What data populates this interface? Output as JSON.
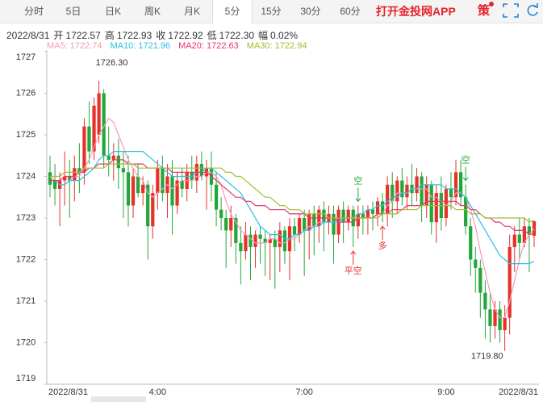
{
  "header": {
    "tabs": [
      {
        "label": "分时"
      },
      {
        "label": "5日"
      },
      {
        "label": "日K"
      },
      {
        "label": "周K"
      },
      {
        "label": "月K"
      },
      {
        "label": "5分",
        "selected": true
      },
      {
        "label": "15分"
      },
      {
        "label": "30分"
      },
      {
        "label": "60分"
      }
    ],
    "app_link": "打开金投网APP",
    "strategy": "策",
    "date": "2022/8/31",
    "fields": [
      {
        "name": "开",
        "value": "1722.57"
      },
      {
        "name": "高",
        "value": "1722.93"
      },
      {
        "name": "收",
        "value": "1722.92"
      },
      {
        "name": "低",
        "value": "1722.30"
      },
      {
        "name": "幅",
        "value": "0.02%"
      }
    ]
  },
  "chart_data": {
    "type": "candlestick",
    "categories": [
      "2022/8/31",
      null,
      null,
      null,
      null,
      null,
      null,
      null,
      null,
      null,
      null,
      null,
      null,
      null,
      null,
      null,
      null,
      null,
      null,
      null,
      null,
      null,
      "4:00",
      null,
      null,
      null,
      null,
      null,
      null,
      null,
      null,
      null,
      null,
      null,
      null,
      null,
      null,
      null,
      null,
      null,
      null,
      null,
      null,
      null,
      null,
      null,
      null,
      null,
      null,
      null,
      null,
      null,
      "7:00",
      null,
      null,
      null,
      null,
      null,
      null,
      null,
      null,
      null,
      null,
      null,
      null,
      null,
      null,
      null,
      null,
      null,
      null,
      null,
      null,
      null,
      null,
      null,
      null,
      null,
      null,
      null,
      null,
      "9:00",
      null,
      null,
      null,
      null,
      null,
      null,
      null,
      null,
      null,
      null,
      null,
      null,
      null,
      null,
      null,
      null,
      null,
      "2022/8/31"
    ],
    "open": [
      1724.1,
      1723.9,
      1723.7,
      1723.9,
      1724.0,
      1723.9,
      1724.2,
      1724.1,
      1725.2,
      1724.6,
      1725.0,
      1726.0,
      1724.5,
      1724.4,
      1724.5,
      1724.2,
      1724.1,
      1723.3,
      1724.0,
      1723.6,
      1723.8,
      1722.8,
      1723.6,
      1724.2,
      1723.6,
      1724.0,
      1723.3,
      1723.9,
      1723.7,
      1724.1,
      1723.9,
      1724.3,
      1724.0,
      1724.2,
      1723.8,
      1723.2,
      1723.0,
      1722.7,
      1723.0,
      1722.4,
      1722.2,
      1722.6,
      1722.3,
      1722.6,
      1722.5,
      1722.4,
      1722.5,
      1722.3,
      1722.7,
      1722.2,
      1722.8,
      1722.6,
      1723.0,
      1722.7,
      1723.1,
      1722.8,
      1723.2,
      1722.9,
      1723.1,
      1722.6,
      1723.2,
      1722.9,
      1723.2,
      1722.8,
      1723.1,
      1723.0,
      1723.2,
      1723.1,
      1723.4,
      1723.1,
      1723.8,
      1723.4,
      1723.9,
      1723.5,
      1723.8,
      1723.6,
      1724.0,
      1723.3,
      1723.8,
      1722.9,
      1723.6,
      1723.0,
      1723.7,
      1723.5,
      1724.1,
      1723.5,
      1722.8,
      1722.0,
      1721.8,
      1721.2,
      1720.8,
      1720.4,
      1720.8,
      1720.3,
      1720.6,
      1722.3,
      1722.6,
      1722.4,
      1722.8,
      1722.57
    ],
    "high": [
      1724.5,
      1724.3,
      1724.1,
      1724.6,
      1724.4,
      1724.5,
      1724.8,
      1725.4,
      1725.8,
      1725.9,
      1726.3,
      1726.1,
      1725.2,
      1724.8,
      1724.9,
      1724.6,
      1724.5,
      1724.2,
      1724.3,
      1724.0,
      1723.9,
      1723.8,
      1724.4,
      1724.5,
      1724.3,
      1724.4,
      1724.1,
      1724.2,
      1724.3,
      1724.5,
      1724.5,
      1724.6,
      1724.4,
      1724.6,
      1724.1,
      1723.5,
      1723.2,
      1723.3,
      1723.1,
      1722.8,
      1722.9,
      1722.8,
      1722.7,
      1722.8,
      1722.7,
      1722.6,
      1722.7,
      1722.9,
      1722.8,
      1723.0,
      1723.0,
      1723.1,
      1723.2,
      1723.2,
      1723.3,
      1723.3,
      1723.4,
      1723.3,
      1723.3,
      1723.3,
      1723.4,
      1723.3,
      1723.3,
      1723.3,
      1723.3,
      1723.3,
      1723.4,
      1723.5,
      1723.6,
      1724.0,
      1724.1,
      1724.0,
      1724.2,
      1724.0,
      1724.3,
      1724.2,
      1724.1,
      1724.0,
      1723.9,
      1723.8,
      1724.0,
      1723.8,
      1724.1,
      1724.4,
      1724.4,
      1723.8,
      1723.0,
      1722.3,
      1722.0,
      1721.5,
      1721.2,
      1721.0,
      1721.0,
      1720.9,
      1722.6,
      1722.8,
      1723.0,
      1723.0,
      1723.0,
      1722.93
    ],
    "low": [
      1723.5,
      1723.3,
      1722.8,
      1723.3,
      1723.0,
      1723.4,
      1723.6,
      1723.8,
      1724.3,
      1724.4,
      1724.8,
      1724.2,
      1724.0,
      1723.9,
      1723.7,
      1723.0,
      1722.8,
      1723.0,
      1723.5,
      1723.3,
      1722.0,
      1722.5,
      1723.2,
      1723.4,
      1723.0,
      1722.6,
      1723.1,
      1723.5,
      1723.4,
      1723.7,
      1723.6,
      1723.9,
      1723.2,
      1723.4,
      1722.8,
      1722.7,
      1721.8,
      1722.3,
      1721.9,
      1721.4,
      1722.0,
      1721.5,
      1721.8,
      1721.9,
      1721.6,
      1721.5,
      1721.3,
      1721.7,
      1721.9,
      1721.5,
      1722.2,
      1722.4,
      1721.6,
      1722.0,
      1722.1,
      1722.4,
      1722.2,
      1722.6,
      1721.9,
      1722.4,
      1722.4,
      1722.7,
      1722.3,
      1722.5,
      1722.6,
      1722.6,
      1722.7,
      1722.8,
      1722.9,
      1722.8,
      1723.0,
      1723.1,
      1723.3,
      1723.2,
      1723.3,
      1723.4,
      1722.9,
      1723.0,
      1722.6,
      1722.4,
      1722.7,
      1722.8,
      1723.2,
      1723.3,
      1723.3,
      1722.6,
      1721.6,
      1721.2,
      1720.6,
      1720.1,
      1720.0,
      1720.1,
      1720.0,
      1719.8,
      1720.2,
      1721.7,
      1722.0,
      1722.3,
      1721.7,
      1722.3
    ],
    "close": [
      1723.8,
      1723.7,
      1723.9,
      1724.0,
      1723.9,
      1724.2,
      1724.1,
      1725.2,
      1724.6,
      1725.7,
      1726.0,
      1724.5,
      1724.4,
      1724.5,
      1724.2,
      1724.1,
      1723.3,
      1724.0,
      1723.6,
      1723.8,
      1722.8,
      1723.6,
      1724.2,
      1723.6,
      1724.0,
      1723.3,
      1723.9,
      1723.7,
      1724.1,
      1723.9,
      1724.3,
      1724.0,
      1724.2,
      1723.8,
      1723.2,
      1723.0,
      1722.7,
      1723.0,
      1722.4,
      1722.2,
      1722.6,
      1722.3,
      1722.6,
      1722.5,
      1722.4,
      1722.5,
      1722.3,
      1722.7,
      1722.2,
      1722.8,
      1722.6,
      1723.0,
      1722.7,
      1723.1,
      1722.8,
      1723.2,
      1722.9,
      1723.1,
      1722.6,
      1723.2,
      1722.9,
      1723.2,
      1722.8,
      1723.1,
      1723.0,
      1723.2,
      1723.1,
      1723.4,
      1723.1,
      1723.8,
      1723.4,
      1723.9,
      1723.5,
      1723.8,
      1723.6,
      1724.0,
      1723.3,
      1723.8,
      1722.9,
      1723.6,
      1723.0,
      1723.7,
      1723.5,
      1724.1,
      1723.5,
      1722.8,
      1722.0,
      1721.8,
      1721.2,
      1720.8,
      1720.4,
      1720.8,
      1720.3,
      1720.6,
      1722.3,
      1722.6,
      1722.4,
      1722.8,
      1722.6,
      1722.92
    ],
    "up_color": "#e5322b",
    "down_color": "#22a83a",
    "series": [
      {
        "name": "MA5",
        "color": "#f59ab5",
        "value_label": "1722.74",
        "values": [
          1724.0,
          1723.9,
          1723.8,
          1723.8,
          1723.9,
          1724.0,
          1724.0,
          1724.2,
          1724.4,
          1724.7,
          1725.0,
          1725.2,
          1725.4,
          1725.3,
          1725.0,
          1724.7,
          1724.4,
          1724.2,
          1724.0,
          1723.9,
          1723.6,
          1723.5,
          1723.6,
          1723.7,
          1723.8,
          1723.7,
          1723.8,
          1723.9,
          1723.9,
          1723.9,
          1724.0,
          1724.0,
          1724.1,
          1724.1,
          1724.0,
          1723.8,
          1723.4,
          1723.1,
          1722.9,
          1722.7,
          1722.6,
          1722.5,
          1722.4,
          1722.4,
          1722.4,
          1722.5,
          1722.5,
          1722.4,
          1722.4,
          1722.5,
          1722.5,
          1722.6,
          1722.7,
          1722.8,
          1722.8,
          1722.9,
          1722.9,
          1722.9,
          1722.9,
          1722.9,
          1723.0,
          1723.0,
          1723.0,
          1723.0,
          1723.0,
          1723.0,
          1723.0,
          1723.1,
          1723.1,
          1723.3,
          1723.4,
          1723.6,
          1723.6,
          1723.6,
          1723.7,
          1723.7,
          1723.7,
          1723.7,
          1723.5,
          1723.5,
          1723.4,
          1723.3,
          1723.4,
          1723.6,
          1723.6,
          1723.5,
          1723.2,
          1722.8,
          1722.2,
          1721.7,
          1721.2,
          1720.8,
          1720.6,
          1720.6,
          1721.0,
          1721.5,
          1722.0,
          1722.4,
          1722.6,
          1722.74
        ]
      },
      {
        "name": "MA10",
        "color": "#2cbfe0",
        "value_label": "1721.96",
        "values": [
          1723.9,
          1723.9,
          1723.8,
          1723.8,
          1723.9,
          1723.9,
          1723.9,
          1724.0,
          1724.1,
          1724.2,
          1724.4,
          1724.5,
          1724.5,
          1724.6,
          1724.6,
          1724.6,
          1724.6,
          1724.6,
          1724.6,
          1724.6,
          1724.5,
          1724.4,
          1724.3,
          1724.2,
          1724.1,
          1724.0,
          1724.0,
          1724.0,
          1724.0,
          1724.0,
          1724.1,
          1724.1,
          1724.2,
          1724.2,
          1724.1,
          1724.0,
          1723.9,
          1723.8,
          1723.7,
          1723.6,
          1723.4,
          1723.2,
          1723.0,
          1722.8,
          1722.7,
          1722.6,
          1722.6,
          1722.6,
          1722.5,
          1722.5,
          1722.6,
          1722.6,
          1722.7,
          1722.7,
          1722.8,
          1722.8,
          1722.9,
          1722.9,
          1722.9,
          1722.9,
          1723.0,
          1723.0,
          1723.0,
          1723.1,
          1723.1,
          1723.2,
          1723.2,
          1723.3,
          1723.3,
          1723.4,
          1723.5,
          1723.5,
          1723.6,
          1723.6,
          1723.7,
          1723.7,
          1723.8,
          1723.8,
          1723.8,
          1723.8,
          1723.8,
          1723.7,
          1723.7,
          1723.7,
          1723.6,
          1723.5,
          1723.3,
          1723.1,
          1722.9,
          1722.7,
          1722.5,
          1722.3,
          1722.1,
          1722.0,
          1721.9,
          1721.9,
          1721.9,
          1721.9,
          1721.9,
          1721.96
        ]
      },
      {
        "name": "MA20",
        "color": "#e8336d",
        "value_label": "1722.63",
        "values": [
          1723.9,
          1723.9,
          1723.9,
          1724.0,
          1724.0,
          1724.0,
          1724.1,
          1724.1,
          1724.2,
          1724.2,
          1724.3,
          1724.3,
          1724.3,
          1724.4,
          1724.4,
          1724.4,
          1724.3,
          1724.3,
          1724.3,
          1724.3,
          1724.2,
          1724.2,
          1724.2,
          1724.2,
          1724.2,
          1724.1,
          1724.1,
          1724.1,
          1724.1,
          1724.1,
          1724.1,
          1724.1,
          1724.1,
          1724.0,
          1723.9,
          1723.8,
          1723.7,
          1723.6,
          1723.5,
          1723.5,
          1723.4,
          1723.4,
          1723.3,
          1723.3,
          1723.3,
          1723.2,
          1723.2,
          1723.2,
          1723.2,
          1723.1,
          1723.1,
          1723.1,
          1723.1,
          1723.0,
          1723.0,
          1723.0,
          1723.0,
          1723.0,
          1723.0,
          1722.9,
          1722.9,
          1722.9,
          1722.9,
          1723.0,
          1723.0,
          1723.0,
          1723.0,
          1723.1,
          1723.1,
          1723.1,
          1723.2,
          1723.2,
          1723.2,
          1723.3,
          1723.3,
          1723.3,
          1723.3,
          1723.4,
          1723.4,
          1723.4,
          1723.4,
          1723.4,
          1723.4,
          1723.4,
          1723.3,
          1723.3,
          1723.2,
          1723.2,
          1723.1,
          1723.0,
          1723.0,
          1722.9,
          1722.9,
          1722.8,
          1722.8,
          1722.7,
          1722.7,
          1722.7,
          1722.6,
          1722.63
        ]
      },
      {
        "name": "MA30",
        "color": "#a3bd2e",
        "value_label": "1722.94",
        "values": [
          1724.0,
          1724.0,
          1724.0,
          1724.1,
          1724.1,
          1724.1,
          1724.1,
          1724.2,
          1724.2,
          1724.2,
          1724.2,
          1724.2,
          1724.3,
          1724.3,
          1724.3,
          1724.3,
          1724.3,
          1724.3,
          1724.2,
          1724.2,
          1724.2,
          1724.2,
          1724.2,
          1724.2,
          1724.2,
          1724.2,
          1724.2,
          1724.2,
          1724.2,
          1724.2,
          1724.2,
          1724.2,
          1724.2,
          1724.2,
          1724.2,
          1724.2,
          1724.1,
          1724.1,
          1724.0,
          1724.0,
          1723.9,
          1723.8,
          1723.7,
          1723.6,
          1723.5,
          1723.5,
          1723.4,
          1723.3,
          1723.3,
          1723.2,
          1723.2,
          1723.2,
          1723.1,
          1723.1,
          1723.1,
          1723.1,
          1723.1,
          1723.0,
          1723.0,
          1723.0,
          1723.0,
          1723.0,
          1723.0,
          1723.0,
          1723.0,
          1723.0,
          1723.0,
          1723.0,
          1723.1,
          1723.1,
          1723.1,
          1723.1,
          1723.2,
          1723.2,
          1723.2,
          1723.2,
          1723.3,
          1723.3,
          1723.3,
          1723.3,
          1723.3,
          1723.3,
          1723.3,
          1723.2,
          1723.2,
          1723.2,
          1723.1,
          1723.1,
          1723.1,
          1723.0,
          1723.0,
          1723.0,
          1723.0,
          1723.0,
          1723.0,
          1723.0,
          1723.0,
          1723.0,
          1722.9,
          1722.94
        ]
      }
    ],
    "ylim": [
      1719,
      1727
    ],
    "yticks": [
      1719,
      1720,
      1721,
      1722,
      1723,
      1724,
      1725,
      1726,
      1727
    ],
    "grid": false,
    "high_label": {
      "index": 10,
      "value": 1726.3,
      "label": "1726.30"
    },
    "low_label": {
      "index": 93,
      "value": 1719.8,
      "label": "1719.80"
    },
    "annotations": [
      {
        "text": "空",
        "index": 63,
        "position": "above"
      },
      {
        "text": "平空",
        "index": 62,
        "position": "below"
      },
      {
        "text": "多",
        "index": 68,
        "position": "below"
      },
      {
        "text": "空",
        "index": 85,
        "position": "above"
      }
    ]
  }
}
